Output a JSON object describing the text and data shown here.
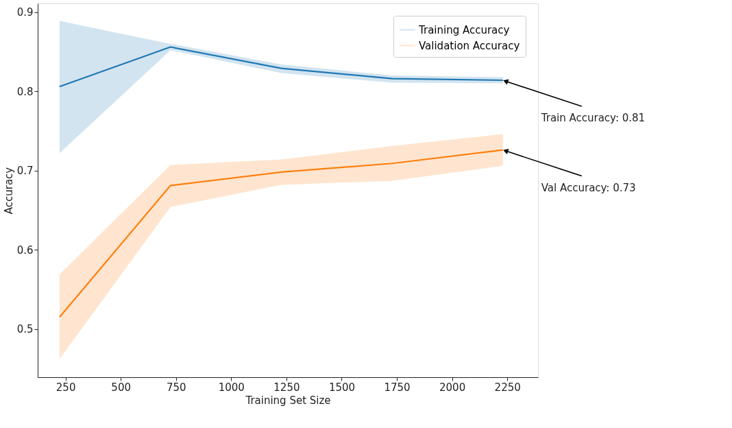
{
  "chart_data": {
    "type": "line",
    "xlabel": "Training Set Size",
    "ylabel": "Accuracy",
    "x": [
      223,
      725,
      1227,
      1729,
      2230
    ],
    "series": [
      {
        "name": "Training Accuracy",
        "color": "#1f77b4",
        "values": [
          0.806,
          0.856,
          0.829,
          0.816,
          0.814
        ],
        "lower": [
          0.722,
          0.852,
          0.823,
          0.811,
          0.81
        ],
        "upper": [
          0.889,
          0.86,
          0.834,
          0.82,
          0.818
        ]
      },
      {
        "name": "Validation Accuracy",
        "color": "#ff7f0e",
        "values": [
          0.515,
          0.681,
          0.698,
          0.709,
          0.726
        ],
        "lower": [
          0.462,
          0.654,
          0.682,
          0.687,
          0.706
        ],
        "upper": [
          0.569,
          0.707,
          0.714,
          0.731,
          0.746
        ]
      }
    ],
    "annotations": [
      {
        "text": "Train Accuracy: 0.81",
        "x": 2230,
        "y": 0.814
      },
      {
        "text": "Val Accuracy: 0.73",
        "x": 2230,
        "y": 0.726
      }
    ],
    "xlim": [
      124,
      2389
    ],
    "ylim": [
      0.439,
      0.911
    ],
    "xticks": [
      250,
      500,
      750,
      1000,
      1250,
      1500,
      1750,
      2000,
      2250
    ],
    "yticks": [
      0.5,
      0.6,
      0.7,
      0.8,
      0.9
    ],
    "legend": "top right",
    "grid": false,
    "marker": "none",
    "line_style": "solid"
  }
}
